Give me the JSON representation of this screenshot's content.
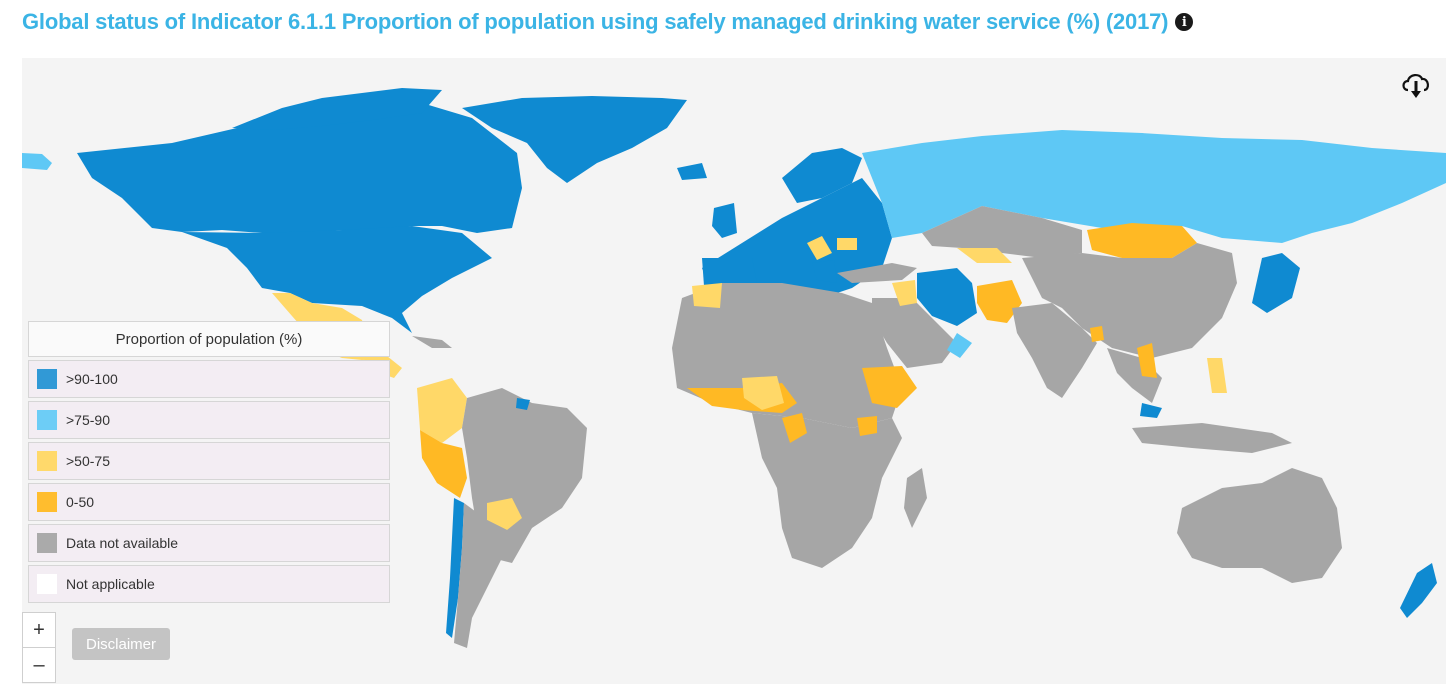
{
  "title": "Global status of Indicator 6.1.1 Proportion of population using safely managed drinking water service (%) (2017)",
  "info_icon": "info-circle-icon",
  "download_icon": "cloud-download-icon",
  "legend": {
    "title": "Proportion of population (%)",
    "items": [
      {
        "label": ">90-100",
        "color": "#0f8ad1"
      },
      {
        "label": ">75-90",
        "color": "#5ec8f5"
      },
      {
        "label": ">50-75",
        "color": "#ffd868"
      },
      {
        "label": "0-50",
        "color": "#ffb924"
      },
      {
        "label": "Data not available",
        "color": "#a6a6a6"
      },
      {
        "label": "Not applicable",
        "color": "#ffffff"
      }
    ]
  },
  "zoom": {
    "in_label": "+",
    "out_label": "–"
  },
  "disclaimer_label": "Disclaimer",
  "colors": {
    "title": "#3bb4e5",
    "ocean": "#f4f4f4",
    "very_high": "#0f8ad1",
    "high": "#5ec8f5",
    "medium": "#ffd868",
    "low": "#ffb924",
    "no_data": "#a6a6a6"
  }
}
